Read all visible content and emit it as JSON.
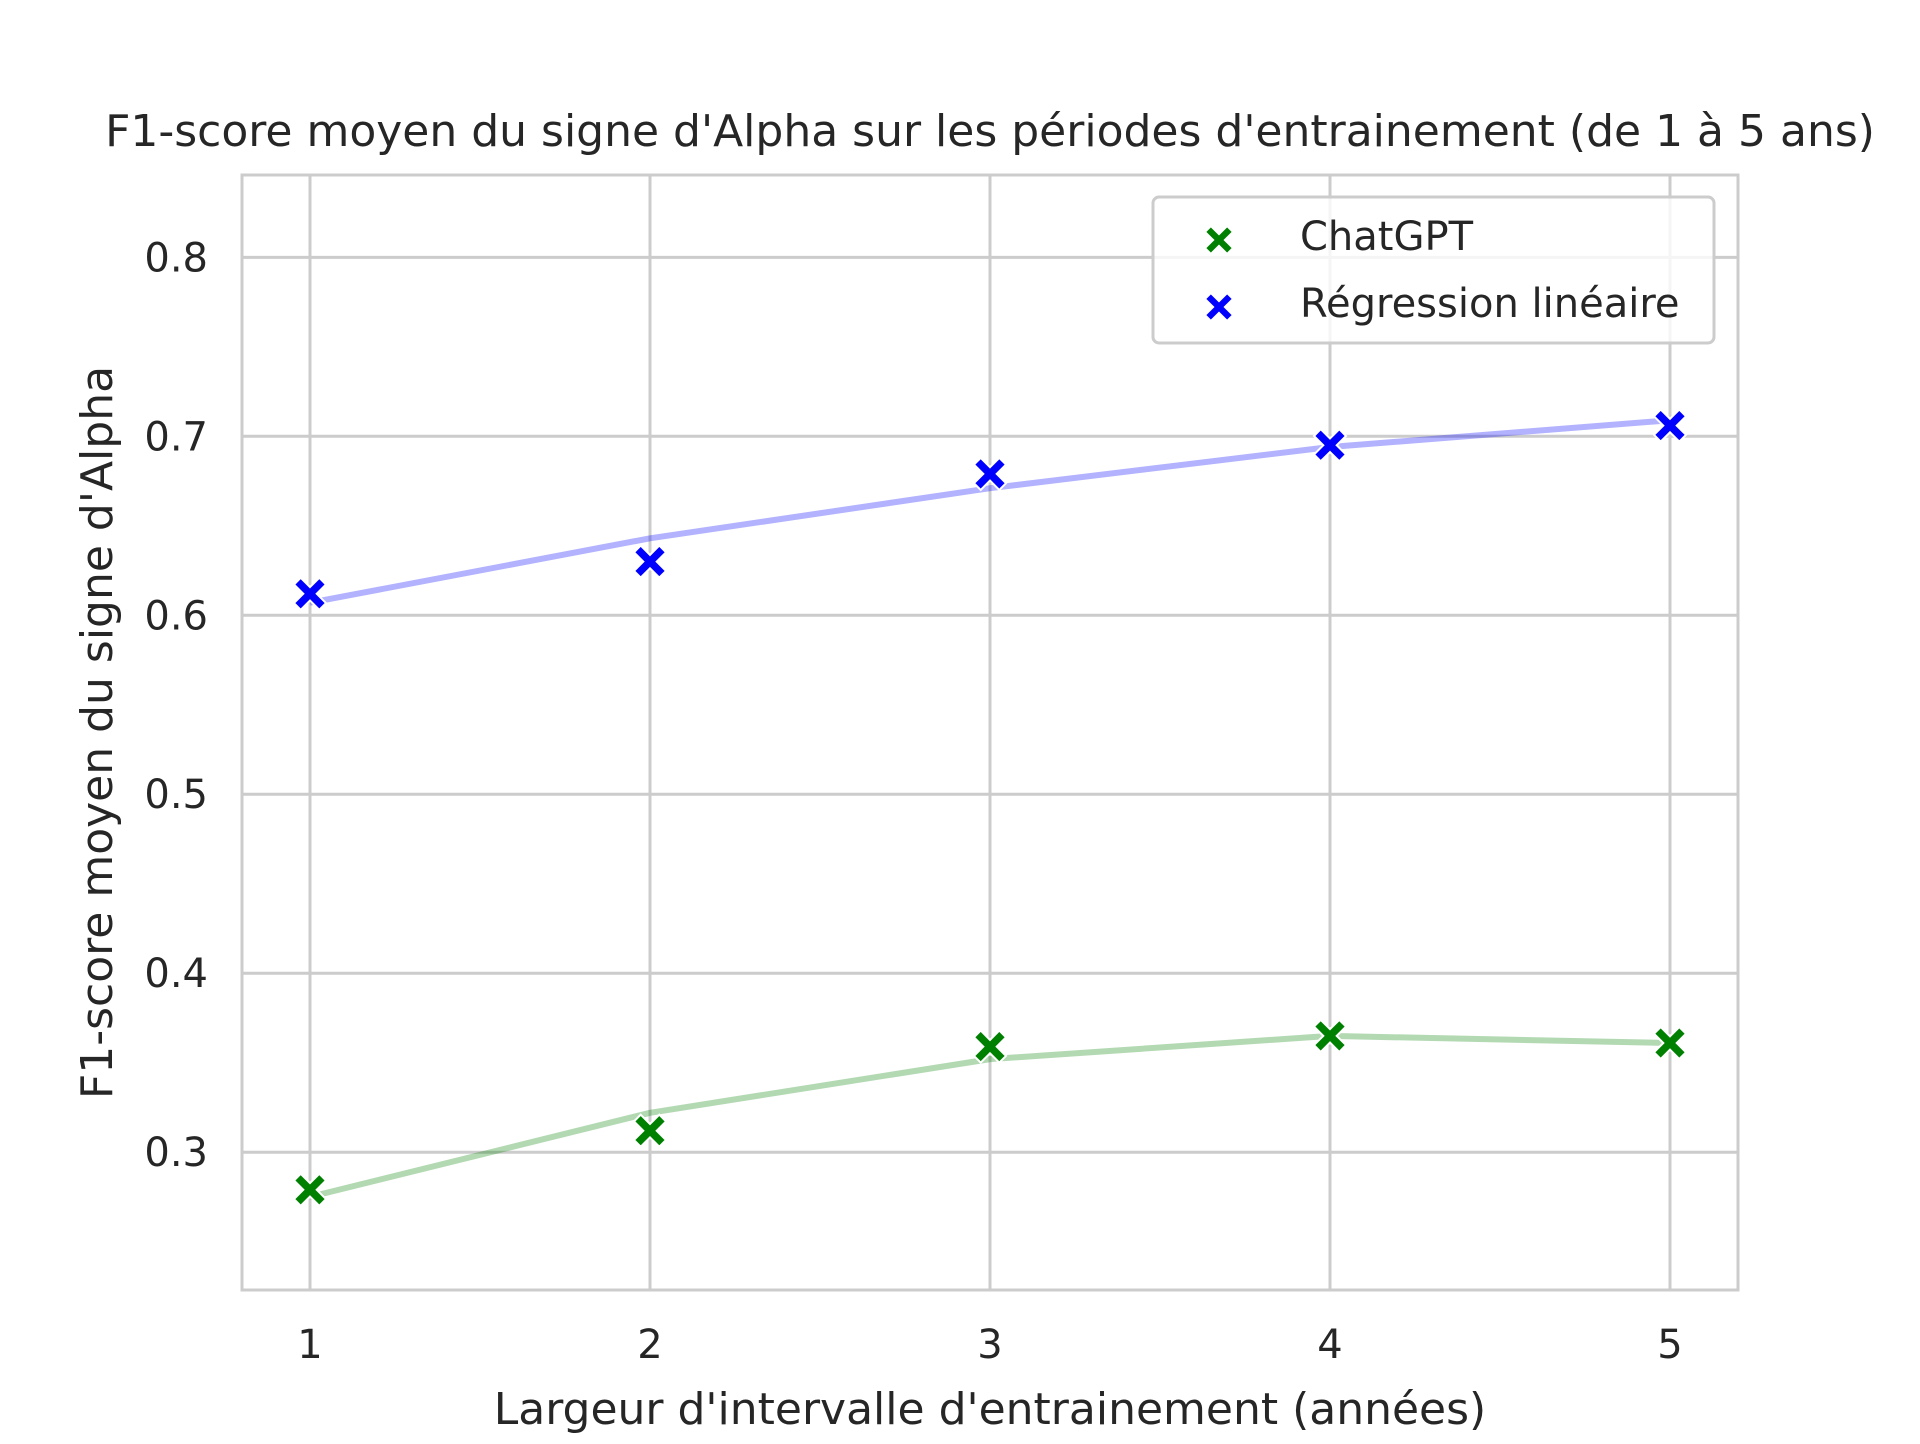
{
  "chart_data": {
    "type": "scatter",
    "title": "F1-score moyen du signe d'Alpha sur les périodes d'entrainement (de 1 à 5 ans)",
    "xlabel": "Largeur d'intervalle d'entrainement (années)",
    "ylabel": "F1-score moyen du signe d'Alpha",
    "x": [
      1,
      2,
      3,
      4,
      5
    ],
    "xticks": [
      "1",
      "2",
      "3",
      "4",
      "5"
    ],
    "yticks": [
      "0.3",
      "0.4",
      "0.5",
      "0.6",
      "0.7",
      "0.8"
    ],
    "xlim": [
      0.8,
      5.2
    ],
    "ylim": [
      0.223,
      0.846
    ],
    "grid": true,
    "legend_position": "top-right",
    "series": [
      {
        "name": "ChatGPT",
        "color": "#008000",
        "marker": "X",
        "values": [
          0.279,
          0.312,
          0.359,
          0.365,
          0.361
        ],
        "trend": [
          0.275,
          0.322,
          0.352,
          0.365,
          0.361
        ]
      },
      {
        "name": "Régression linéaire",
        "color": "#0000ff",
        "marker": "X",
        "values": [
          0.612,
          0.63,
          0.679,
          0.695,
          0.706
        ],
        "trend": [
          0.607,
          0.643,
          0.671,
          0.694,
          0.709
        ]
      }
    ]
  }
}
